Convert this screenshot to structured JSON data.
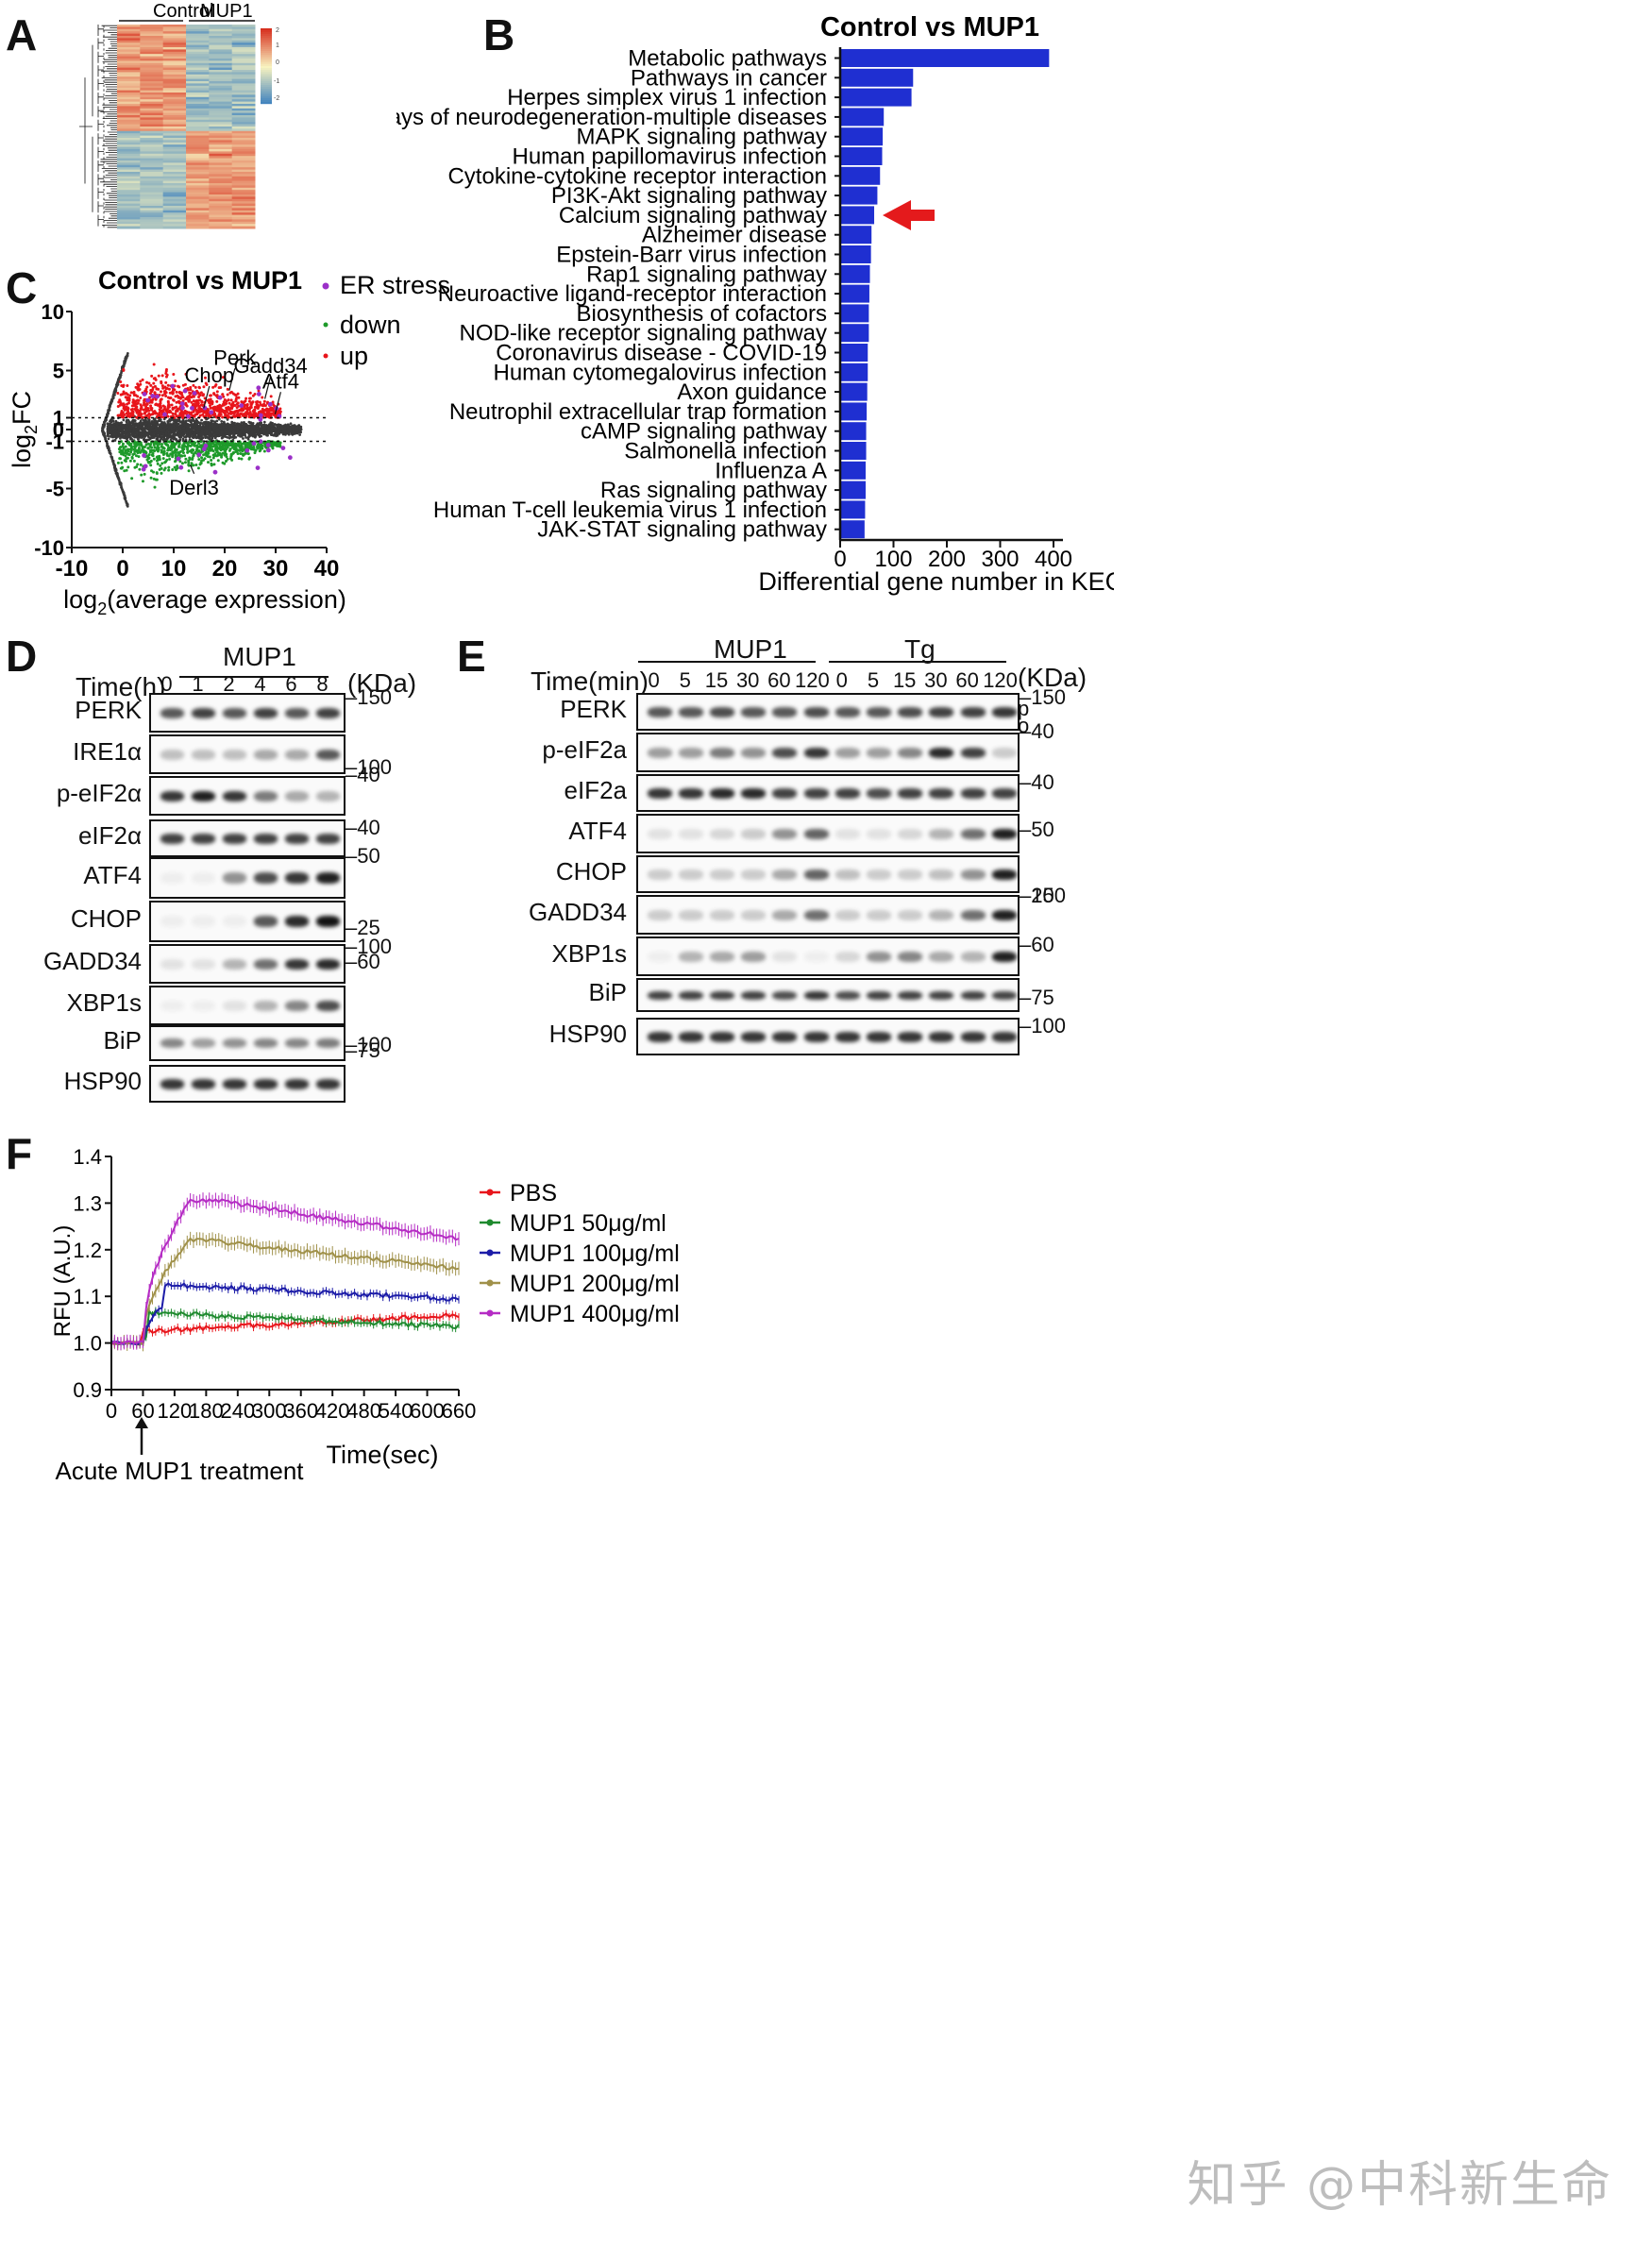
{
  "panels": {
    "a": "A",
    "b": "B",
    "c": "C",
    "d": "D",
    "e": "E",
    "f": "F"
  },
  "heatmap": {
    "groups": [
      "Control",
      "MUP1"
    ],
    "colorbar_ticks": [
      "2",
      "1",
      "0",
      "-1",
      "-2"
    ],
    "colors": {
      "high": "#d7301f",
      "mid": "#f8f3c0",
      "low": "#3a7fbf"
    }
  },
  "kegg": {
    "chart_data": {
      "type": "bar",
      "orientation": "horizontal",
      "title": "Control vs MUP1",
      "xlabel": "Differential gene number in KEGG",
      "xlim": [
        0,
        400
      ],
      "xticks": [
        "0",
        "100",
        "200",
        "300",
        "400"
      ],
      "categories": [
        "Metabolic pathways",
        "Pathways in cancer",
        "Herpes simplex virus 1 infection",
        "Pathways of neurodegeneration-multiple diseases",
        "MAPK signaling pathway",
        "Human papillomavirus infection",
        "Cytokine-cytokine receptor interaction",
        "PI3K-Akt signaling pathway",
        "Calcium signaling pathway",
        "Alzheimer disease",
        "Epstein-Barr virus infection",
        "Rap1 signaling pathway",
        "Neuroactive ligand-receptor interaction",
        "Biosynthesis of cofactors",
        "NOD-like receptor signaling pathway",
        "Coronavirus disease - COVID-19",
        "Human cytomegalovirus infection",
        "Axon guidance",
        "Neutrophil extracellular trap formation",
        "cAMP signaling pathway",
        "Salmonella infection",
        "Influenza A",
        "Ras signaling pathway",
        "Human T-cell leukemia virus 1 infection",
        "JAK-STAT signaling pathway"
      ],
      "values": [
        390,
        135,
        132,
        80,
        78,
        77,
        73,
        68,
        62,
        57,
        56,
        54,
        53,
        52,
        52,
        50,
        50,
        49,
        48,
        47,
        47,
        46,
        46,
        45,
        44
      ],
      "highlight": "Calcium signaling pathway",
      "bar_color": "#1f2fd1",
      "arrow_color": "#e41a1c"
    }
  },
  "ma": {
    "chart_data": {
      "type": "scatter",
      "title": "Control vs MUP1",
      "xlabel": "log2(average expression)",
      "xlabel_main": "log",
      "xlabel_sub": "2",
      "xlabel_rest": "(average expression)",
      "ylabel_main": "log",
      "ylabel_sub": "2",
      "ylabel_rest": "FC",
      "xlim": [
        -10,
        40
      ],
      "ylim": [
        -10,
        10
      ],
      "xticks": [
        "-10",
        "0",
        "10",
        "20",
        "30",
        "40"
      ],
      "yticks": [
        "10",
        "5",
        "1",
        "0",
        "-1",
        "-5",
        "-10"
      ],
      "threshold": [
        1,
        -1
      ],
      "legend": [
        "ER stress",
        "down",
        "up"
      ],
      "colors": {
        "up": "#e8151b",
        "down": "#1e9a2a",
        "ns": "#3a3a3a",
        "er": "#9b30c8"
      },
      "annotations": [
        {
          "label": "Perk",
          "x": 22,
          "y": 5.5
        },
        {
          "label": "Gadd34",
          "x": 29,
          "y": 4.8
        },
        {
          "label": "Chop",
          "x": 17,
          "y": 4
        },
        {
          "label": "Atf4",
          "x": 31,
          "y": 3.5
        },
        {
          "label": "Derl3",
          "x": 14,
          "y": -5.5
        }
      ]
    }
  },
  "blotD": {
    "group": "MUP1",
    "time_label": "Time(h)",
    "unit": "(KDa)",
    "times": [
      "0",
      "1",
      "2",
      "4",
      "6",
      "8"
    ],
    "rows": [
      {
        "name": "PERK",
        "marker": "150"
      },
      {
        "name": "IRE1α",
        "marker": "100"
      },
      {
        "name": "p-eIF2α",
        "marker": "40"
      },
      {
        "name": "eIF2α",
        "marker": "40"
      },
      {
        "name": "ATF4",
        "marker": "50"
      },
      {
        "name": "CHOP",
        "marker": "25"
      },
      {
        "name": "GADD34",
        "marker": "100"
      },
      {
        "name": "XBP1s",
        "marker": "60"
      },
      {
        "name": "BiP",
        "marker": "75"
      },
      {
        "name": "HSP90",
        "marker": "100"
      }
    ]
  },
  "blotE": {
    "groups": [
      "MUP1",
      "Tg"
    ],
    "time_label": "Time(min)",
    "unit": "(KDa)",
    "times": [
      "0",
      "5",
      "15",
      "30",
      "60",
      "120",
      "0",
      "5",
      "15",
      "30",
      "60",
      "120"
    ],
    "phospho_labels": [
      "p",
      "o"
    ],
    "rows": [
      {
        "name": "PERK",
        "marker": "150"
      },
      {
        "name": "p-eIF2a",
        "marker": "40"
      },
      {
        "name": "eIF2a",
        "marker": "40"
      },
      {
        "name": "ATF4",
        "marker": "50"
      },
      {
        "name": "CHOP",
        "marker": "25"
      },
      {
        "name": "GADD34",
        "marker": "100"
      },
      {
        "name": "XBP1s",
        "marker": "60"
      },
      {
        "name": "BiP",
        "marker": "75"
      },
      {
        "name": "HSP90",
        "marker": "100"
      }
    ]
  },
  "calcium": {
    "chart_data": {
      "type": "line",
      "xlabel": "Time(sec)",
      "ylabel": "RFU (A.U.)",
      "xlim": [
        0,
        660
      ],
      "ylim": [
        0.9,
        1.4
      ],
      "xticks": [
        "0",
        "60",
        "120",
        "180",
        "240",
        "300",
        "360",
        "420",
        "480",
        "540",
        "600",
        "660"
      ],
      "yticks": [
        "0.9",
        "1.0",
        "1.1",
        "1.2",
        "1.3",
        "1.4"
      ],
      "annotation": "Acute MUP1 treatment",
      "series": [
        {
          "name": "PBS",
          "color": "#e8151b",
          "baseline": 1.0,
          "peak": 1.025,
          "end": 1.06
        },
        {
          "name": "MUP1 50μg/ml",
          "color": "#1e8a2e",
          "baseline": 1.0,
          "peak": 1.065,
          "end": 1.035
        },
        {
          "name": "MUP1 100μg/ml",
          "color": "#1c1ca8",
          "baseline": 1.0,
          "peak": 1.125,
          "end": 1.095
        },
        {
          "name": "MUP1 200μg/ml",
          "color": "#a0914a",
          "baseline": 1.0,
          "peak": 1.22,
          "end": 1.16
        },
        {
          "name": "MUP1 400μg/ml",
          "color": "#b52cc4",
          "baseline": 1.0,
          "peak": 1.305,
          "end": 1.225
        }
      ]
    }
  },
  "watermark": "知乎 @中科新生命"
}
